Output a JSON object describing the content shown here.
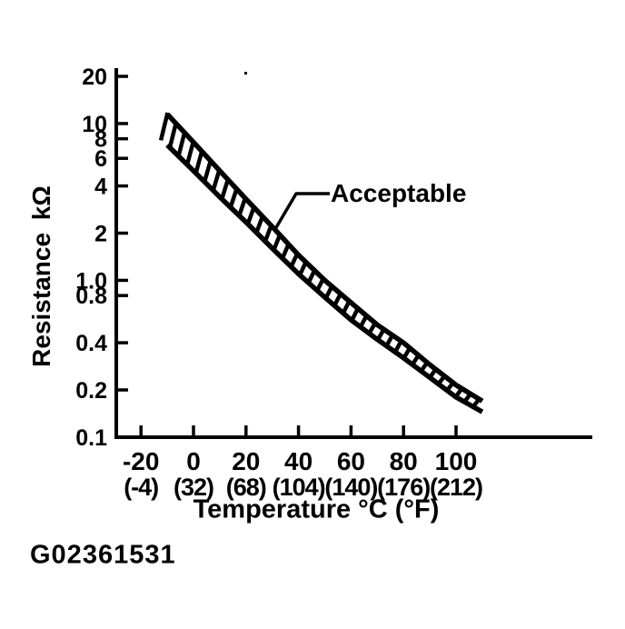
{
  "figure": {
    "code": "G02361531"
  },
  "chart_data": {
    "type": "area",
    "subtype": "hatched-band",
    "band_label": "Acceptable",
    "xlabel": "Temperature °C (°F)",
    "ylabel": "Resistance kΩ",
    "grid": false,
    "legend": "none",
    "x_axis": {
      "ticks_c": [
        -20,
        0,
        20,
        40,
        60,
        80,
        100
      ],
      "tick_labels_c": [
        "-20",
        "0",
        "20",
        "40",
        "60",
        "80",
        "100"
      ],
      "tick_labels_f": [
        "(-4)",
        "(32)",
        "(68)",
        "(104)",
        "(140)",
        "(176)",
        "(212)"
      ],
      "range_c": [
        -30,
        152
      ]
    },
    "y_axis": {
      "scale": "log",
      "ticks": [
        20,
        10,
        8,
        6,
        4,
        2,
        1.0,
        0.8,
        0.4,
        0.2,
        0.1
      ],
      "tick_labels": [
        "20",
        "10",
        "8",
        "6",
        "4",
        "2",
        "1.0",
        "0.8",
        "0.4",
        "0.2",
        "0.1"
      ],
      "range": [
        0.1,
        20
      ]
    },
    "band": {
      "temps_c": [
        -10,
        0,
        10,
        20,
        30,
        40,
        50,
        60,
        70,
        80,
        90,
        100,
        110
      ],
      "upper_kohm": [
        11.5,
        7.6,
        5.0,
        3.3,
        2.2,
        1.45,
        1.0,
        0.72,
        0.52,
        0.4,
        0.29,
        0.215,
        0.17
      ],
      "lower_kohm": [
        7.3,
        5.0,
        3.4,
        2.35,
        1.6,
        1.1,
        0.78,
        0.56,
        0.42,
        0.32,
        0.24,
        0.18,
        0.145
      ]
    },
    "colors": {
      "ink": "#000000",
      "paper": "#ffffff"
    }
  }
}
